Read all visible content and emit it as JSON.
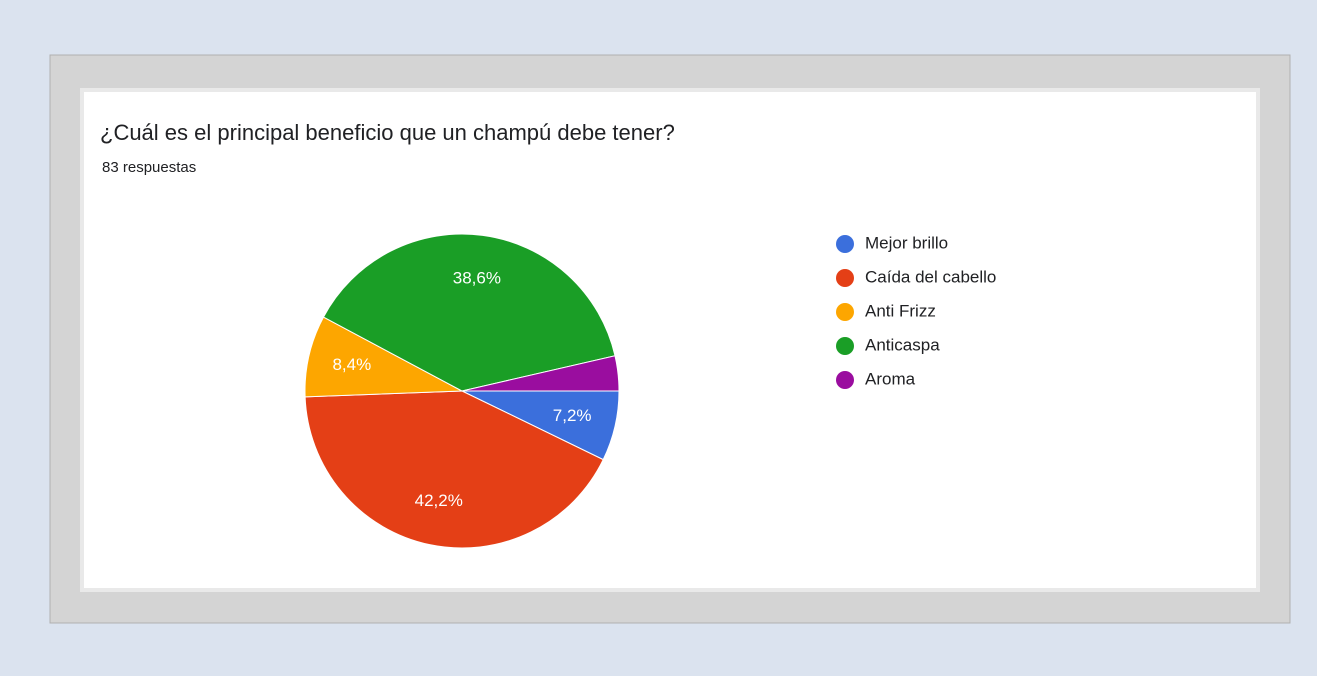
{
  "chart_data": {
    "type": "pie",
    "title": "¿Cuál es el principal beneficio que un champú debe tener?",
    "subtitle": "83 respuestas",
    "categories": [
      "Mejor brillo",
      "Caída del cabello",
      "Anti Frizz",
      "Anticaspa",
      "Aroma"
    ],
    "values": [
      7.2,
      42.2,
      8.4,
      38.6,
      3.6
    ],
    "value_labels": [
      "7,2%",
      "42,2%",
      "8,4%",
      "38,6%",
      null
    ],
    "colors": [
      "#3b6fdc",
      "#e43f16",
      "#fda600",
      "#1a9e26",
      "#9a0d9f"
    ],
    "legend": "right"
  }
}
